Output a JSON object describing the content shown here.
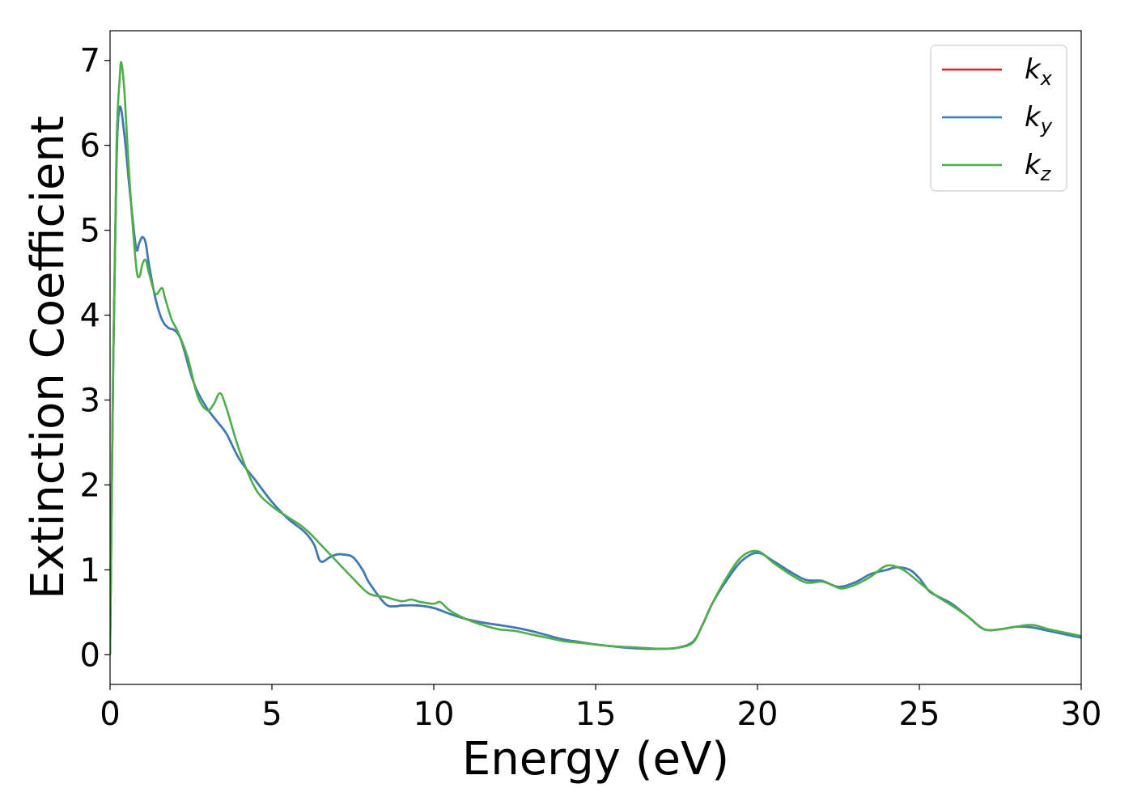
{
  "chart_data": {
    "type": "line",
    "xlabel": "Energy (eV)",
    "ylabel": "Extinction Coefficient",
    "xlim": [
      0,
      30
    ],
    "ylim": [
      -0.35,
      7.35
    ],
    "xticks": [
      0,
      5,
      10,
      15,
      20,
      25,
      30
    ],
    "yticks": [
      0,
      1,
      2,
      3,
      4,
      5,
      6,
      7
    ],
    "grid": false,
    "legend_position": "top-right",
    "series": [
      {
        "name": "k",
        "subscript": "x",
        "color": "#e41a1c",
        "x": [
          0,
          0.1,
          0.2,
          0.3,
          0.45,
          0.6,
          0.8,
          0.9,
          1.0,
          1.1,
          1.2,
          1.4,
          1.6,
          1.8,
          2.0,
          2.2,
          2.5,
          2.7,
          3.0,
          3.3,
          3.6,
          4.0,
          4.5,
          5.0,
          5.5,
          6.0,
          6.3,
          6.5,
          6.8,
          7.0,
          7.2,
          7.5,
          7.8,
          8.0,
          8.5,
          8.8,
          9.0,
          9.5,
          10.0,
          10.5,
          11.0,
          11.5,
          12.0,
          12.5,
          13.0,
          13.5,
          14.0,
          14.5,
          15.0,
          15.5,
          16.0,
          16.5,
          17.0,
          17.5,
          18.0,
          18.3,
          18.6,
          19.0,
          19.5,
          20.0,
          20.5,
          21.0,
          21.5,
          22.0,
          22.5,
          23.0,
          23.5,
          24.0,
          24.3,
          24.7,
          25.0,
          25.3,
          25.6,
          26.0,
          26.5,
          27.0,
          27.5,
          28.0,
          28.5,
          29.0,
          29.5,
          30.0
        ],
        "y": [
          0,
          3.5,
          5.8,
          6.45,
          6.1,
          5.5,
          4.8,
          4.85,
          4.92,
          4.85,
          4.6,
          4.2,
          3.95,
          3.85,
          3.82,
          3.7,
          3.3,
          3.1,
          2.9,
          2.75,
          2.6,
          2.3,
          2.05,
          1.8,
          1.6,
          1.45,
          1.3,
          1.1,
          1.15,
          1.18,
          1.18,
          1.15,
          1.0,
          0.85,
          0.6,
          0.57,
          0.58,
          0.58,
          0.55,
          0.48,
          0.42,
          0.38,
          0.35,
          0.32,
          0.28,
          0.23,
          0.18,
          0.15,
          0.12,
          0.1,
          0.08,
          0.07,
          0.07,
          0.08,
          0.15,
          0.35,
          0.6,
          0.85,
          1.1,
          1.2,
          1.1,
          0.98,
          0.88,
          0.87,
          0.8,
          0.85,
          0.95,
          1.0,
          1.03,
          1.0,
          0.9,
          0.75,
          0.68,
          0.6,
          0.45,
          0.3,
          0.3,
          0.33,
          0.32,
          0.28,
          0.24,
          0.2
        ]
      },
      {
        "name": "k",
        "subscript": "y",
        "color": "#377eb8",
        "x": [
          0,
          0.1,
          0.2,
          0.3,
          0.45,
          0.6,
          0.8,
          0.9,
          1.0,
          1.1,
          1.2,
          1.4,
          1.6,
          1.8,
          2.0,
          2.2,
          2.5,
          2.7,
          3.0,
          3.3,
          3.6,
          4.0,
          4.5,
          5.0,
          5.5,
          6.0,
          6.3,
          6.5,
          6.8,
          7.0,
          7.2,
          7.5,
          7.8,
          8.0,
          8.5,
          8.8,
          9.0,
          9.5,
          10.0,
          10.5,
          11.0,
          11.5,
          12.0,
          12.5,
          13.0,
          13.5,
          14.0,
          14.5,
          15.0,
          15.5,
          16.0,
          16.5,
          17.0,
          17.5,
          18.0,
          18.3,
          18.6,
          19.0,
          19.5,
          20.0,
          20.5,
          21.0,
          21.5,
          22.0,
          22.5,
          23.0,
          23.5,
          24.0,
          24.3,
          24.7,
          25.0,
          25.3,
          25.6,
          26.0,
          26.5,
          27.0,
          27.5,
          28.0,
          28.5,
          29.0,
          29.5,
          30.0
        ],
        "y": [
          0,
          3.5,
          5.8,
          6.45,
          6.1,
          5.5,
          4.8,
          4.85,
          4.92,
          4.85,
          4.6,
          4.2,
          3.95,
          3.85,
          3.82,
          3.7,
          3.3,
          3.1,
          2.9,
          2.75,
          2.6,
          2.3,
          2.05,
          1.8,
          1.6,
          1.45,
          1.3,
          1.1,
          1.15,
          1.18,
          1.18,
          1.15,
          1.0,
          0.85,
          0.6,
          0.57,
          0.58,
          0.58,
          0.55,
          0.48,
          0.42,
          0.38,
          0.35,
          0.32,
          0.28,
          0.23,
          0.18,
          0.15,
          0.12,
          0.1,
          0.08,
          0.07,
          0.07,
          0.08,
          0.15,
          0.35,
          0.6,
          0.85,
          1.1,
          1.2,
          1.1,
          0.98,
          0.88,
          0.87,
          0.8,
          0.85,
          0.95,
          1.0,
          1.03,
          1.0,
          0.9,
          0.75,
          0.68,
          0.6,
          0.45,
          0.3,
          0.3,
          0.33,
          0.32,
          0.28,
          0.24,
          0.2
        ]
      },
      {
        "name": "k",
        "subscript": "z",
        "color": "#4daf4a",
        "x": [
          0,
          0.1,
          0.2,
          0.3,
          0.35,
          0.45,
          0.6,
          0.8,
          0.9,
          1.0,
          1.1,
          1.2,
          1.4,
          1.6,
          1.7,
          1.9,
          2.1,
          2.4,
          2.7,
          3.0,
          3.2,
          3.4,
          3.6,
          4.0,
          4.5,
          5.0,
          5.5,
          5.9,
          6.2,
          6.5,
          7.0,
          7.5,
          8.0,
          8.5,
          9.0,
          9.3,
          9.6,
          10.0,
          10.2,
          10.5,
          11.0,
          11.5,
          12.0,
          12.5,
          13.0,
          13.5,
          14.0,
          14.5,
          15.0,
          15.5,
          16.0,
          16.5,
          17.0,
          17.5,
          18.0,
          18.3,
          18.6,
          19.0,
          19.5,
          20.0,
          20.5,
          21.0,
          21.5,
          22.0,
          22.3,
          22.6,
          23.0,
          23.5,
          24.0,
          24.5,
          25.0,
          25.5,
          26.0,
          26.5,
          27.0,
          27.5,
          28.0,
          28.5,
          29.0,
          29.5,
          30.0
        ],
        "y": [
          0,
          3.5,
          6.0,
          6.8,
          6.97,
          6.6,
          5.6,
          4.6,
          4.45,
          4.6,
          4.65,
          4.5,
          4.25,
          4.32,
          4.2,
          3.95,
          3.8,
          3.5,
          3.05,
          2.88,
          2.95,
          3.08,
          2.9,
          2.4,
          1.95,
          1.75,
          1.62,
          1.52,
          1.42,
          1.3,
          1.1,
          0.9,
          0.72,
          0.68,
          0.63,
          0.65,
          0.62,
          0.6,
          0.62,
          0.52,
          0.42,
          0.35,
          0.3,
          0.28,
          0.24,
          0.2,
          0.16,
          0.14,
          0.12,
          0.1,
          0.09,
          0.08,
          0.07,
          0.08,
          0.14,
          0.35,
          0.6,
          0.88,
          1.15,
          1.22,
          1.08,
          0.95,
          0.85,
          0.86,
          0.82,
          0.78,
          0.82,
          0.92,
          1.05,
          1.0,
          0.85,
          0.7,
          0.58,
          0.45,
          0.3,
          0.3,
          0.33,
          0.35,
          0.3,
          0.26,
          0.22
        ]
      }
    ]
  }
}
